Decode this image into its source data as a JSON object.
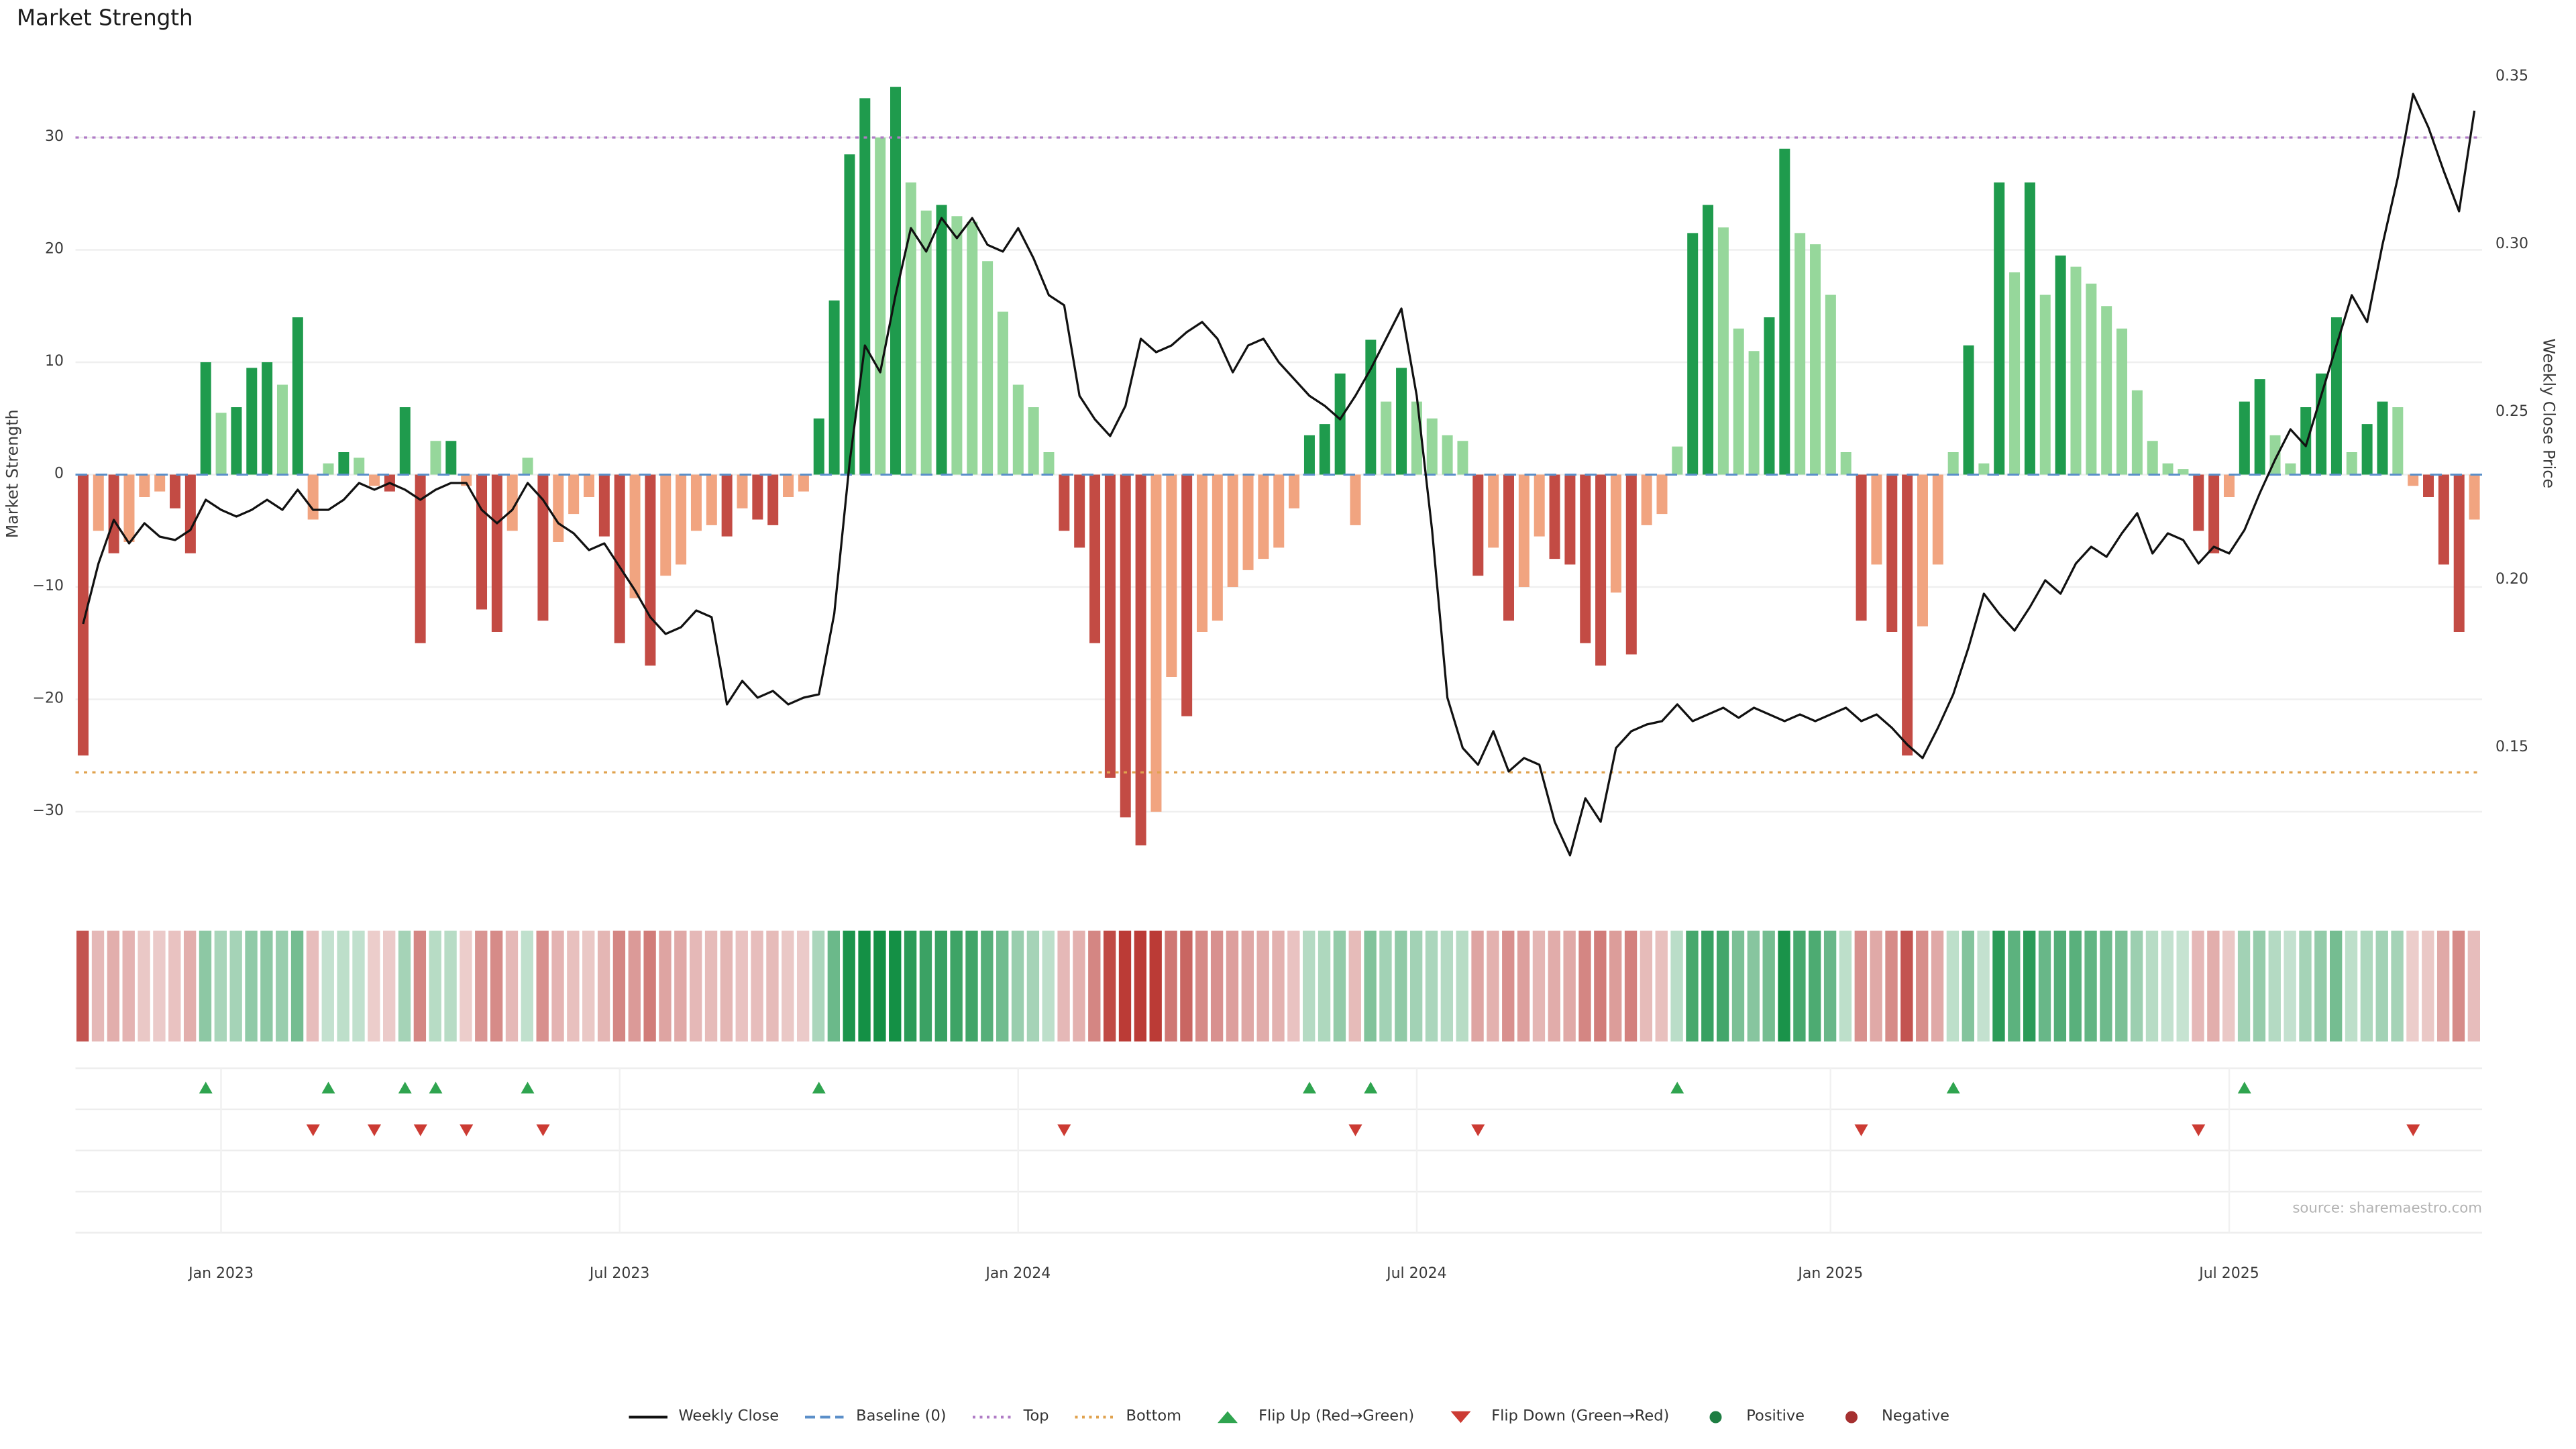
{
  "title": "Market Strength",
  "source": "source: sharemaestro.com",
  "axes": {
    "left_label": "Market Strength",
    "right_label": "Weekly Close Price",
    "left_ticks": [
      "30",
      "20",
      "10",
      "0",
      "−10",
      "−20",
      "−30"
    ],
    "left_tick_values": [
      30,
      20,
      10,
      0,
      -10,
      -20,
      -30
    ],
    "right_ticks": [
      "0.35",
      "0.30",
      "0.25",
      "0.20",
      "0.15"
    ],
    "right_tick_values": [
      0.35,
      0.3,
      0.25,
      0.2,
      0.15
    ],
    "x_ticks": [
      {
        "label": "Jan 2023",
        "index": 9
      },
      {
        "label": "Jul 2023",
        "index": 35
      },
      {
        "label": "Jan 2024",
        "index": 61
      },
      {
        "label": "Jul 2024",
        "index": 87
      },
      {
        "label": "Jan 2025",
        "index": 114
      },
      {
        "label": "Jul 2025",
        "index": 140
      }
    ]
  },
  "chart_data": {
    "type": "bar",
    "title": "Market Strength",
    "x_unit": "weeks",
    "n_points": 157,
    "left_ylim": [
      -37,
      37
    ],
    "right_ylim": [
      0.108,
      0.355
    ],
    "baseline": 0,
    "top_threshold": 30,
    "bottom_threshold": -26.5,
    "panels": [
      "strength-bars+price-line",
      "strength-heatmap-strip",
      "flip-up-markers",
      "flip-down-markers"
    ],
    "series": [
      {
        "name": "Market Strength",
        "type": "bar",
        "axis": "left",
        "values": [
          -25,
          -5,
          -7,
          -6,
          -2,
          -1.5,
          -3,
          -7,
          10,
          5.5,
          6,
          9.5,
          10,
          8,
          14,
          -4,
          1,
          2,
          1.5,
          -1,
          -1.5,
          6,
          -15,
          3,
          3,
          -1,
          -12,
          -14,
          -5,
          1.5,
          -13,
          -6,
          -3.5,
          -2,
          -5.5,
          -15,
          -11,
          -17,
          -9,
          -8,
          -5,
          -4.5,
          -5.5,
          -3,
          -4,
          -4.5,
          -2,
          -1.5,
          5,
          15.5,
          28.5,
          33.5,
          30,
          34.5,
          26,
          23.5,
          24,
          23,
          22.5,
          19,
          14.5,
          8,
          6,
          2,
          -5,
          -6.5,
          -15,
          -27,
          -30.5,
          -33,
          -30,
          -18,
          -21.5,
          -14,
          -13,
          -10,
          -8.5,
          -7.5,
          -6.5,
          -3,
          3.5,
          4.5,
          9,
          -4.5,
          12,
          6.5,
          9.5,
          6.5,
          5,
          3.5,
          3,
          -9,
          -6.5,
          -13,
          -10,
          -5.5,
          -7.5,
          -8,
          -15,
          -17,
          -10.5,
          -16,
          -4.5,
          -3.5,
          2.5,
          21.5,
          24,
          22,
          13,
          11,
          14,
          29,
          21.5,
          20.5,
          16,
          2,
          -13,
          -8,
          -14,
          -25,
          -13.5,
          -8,
          2,
          11.5,
          1,
          26,
          18,
          26,
          16,
          19.5,
          18.5,
          17,
          15,
          13,
          7.5,
          3,
          1,
          0.5,
          -5,
          -7,
          -2,
          6.5,
          8.5,
          3.5,
          1,
          6,
          9,
          14,
          2,
          4.5,
          6.5,
          6,
          -1,
          -2,
          -8,
          -14,
          -4
        ]
      },
      {
        "name": "Weekly Close",
        "type": "line",
        "axis": "right",
        "values": [
          0.187,
          0.205,
          0.218,
          0.211,
          0.217,
          0.213,
          0.212,
          0.215,
          0.224,
          0.221,
          0.219,
          0.221,
          0.224,
          0.221,
          0.227,
          0.221,
          0.221,
          0.224,
          0.229,
          0.227,
          0.229,
          0.227,
          0.224,
          0.227,
          0.229,
          0.229,
          0.221,
          0.217,
          0.221,
          0.229,
          0.224,
          0.217,
          0.214,
          0.209,
          0.211,
          0.204,
          0.197,
          0.189,
          0.184,
          0.186,
          0.191,
          0.189,
          0.163,
          0.17,
          0.165,
          0.167,
          0.163,
          0.165,
          0.166,
          0.19,
          0.235,
          0.27,
          0.262,
          0.285,
          0.305,
          0.298,
          0.308,
          0.302,
          0.308,
          0.3,
          0.298,
          0.305,
          0.296,
          0.285,
          0.282,
          0.255,
          0.248,
          0.243,
          0.252,
          0.272,
          0.268,
          0.27,
          0.274,
          0.277,
          0.272,
          0.262,
          0.27,
          0.272,
          0.265,
          0.26,
          0.255,
          0.252,
          0.248,
          0.255,
          0.263,
          0.272,
          0.281,
          0.255,
          0.215,
          0.165,
          0.15,
          0.145,
          0.155,
          0.143,
          0.147,
          0.145,
          0.128,
          0.118,
          0.135,
          0.128,
          0.15,
          0.155,
          0.157,
          0.158,
          0.163,
          0.158,
          0.16,
          0.162,
          0.159,
          0.162,
          0.16,
          0.158,
          0.16,
          0.158,
          0.16,
          0.162,
          0.158,
          0.16,
          0.156,
          0.151,
          0.147,
          0.156,
          0.166,
          0.18,
          0.196,
          0.19,
          0.185,
          0.192,
          0.2,
          0.196,
          0.205,
          0.21,
          0.207,
          0.214,
          0.22,
          0.208,
          0.214,
          0.212,
          0.205,
          0.21,
          0.208,
          0.215,
          0.226,
          0.236,
          0.245,
          0.24,
          0.255,
          0.27,
          0.285,
          0.277,
          0.3,
          0.32,
          0.345,
          0.335,
          0.322,
          0.31,
          0.34
        ]
      }
    ]
  },
  "legend": {
    "items": [
      {
        "name": "weekly-close",
        "label": "Weekly Close",
        "swatch": "line",
        "color": "#111111"
      },
      {
        "name": "baseline",
        "label": "Baseline (0)",
        "swatch": "dashed",
        "color": "#5b8fc9"
      },
      {
        "name": "top",
        "label": "Top",
        "swatch": "dotted",
        "color": "#b07cc6"
      },
      {
        "name": "bottom",
        "label": "Bottom",
        "swatch": "dotted",
        "color": "#e0a24e"
      },
      {
        "name": "flip-up",
        "label": "Flip Up (Red→Green)",
        "swatch": "triangle-up",
        "color": "#2fa44f"
      },
      {
        "name": "flip-down",
        "label": "Flip Down (Green→Red)",
        "swatch": "triangle-down",
        "color": "#cc3b33"
      },
      {
        "name": "positive",
        "label": "Positive",
        "swatch": "circle",
        "color": "#1e7e43"
      },
      {
        "name": "negative",
        "label": "Negative",
        "swatch": "circle",
        "color": "#a53030"
      }
    ]
  },
  "colors": {
    "bar_pos_dark": "#1f9b4d",
    "bar_pos_light": "#96d79b",
    "bar_neg_dark": "#c34b44",
    "bar_neg_light": "#f1a480",
    "line": "#111111",
    "baseline": "#5b8fc9",
    "top": "#b07cc6",
    "bottom": "#e0a24e",
    "flip_up": "#2fa44f",
    "flip_down": "#cc3b33",
    "heat_green": "#149045",
    "heat_red": "#bb3b36",
    "grid": "#efefef"
  }
}
